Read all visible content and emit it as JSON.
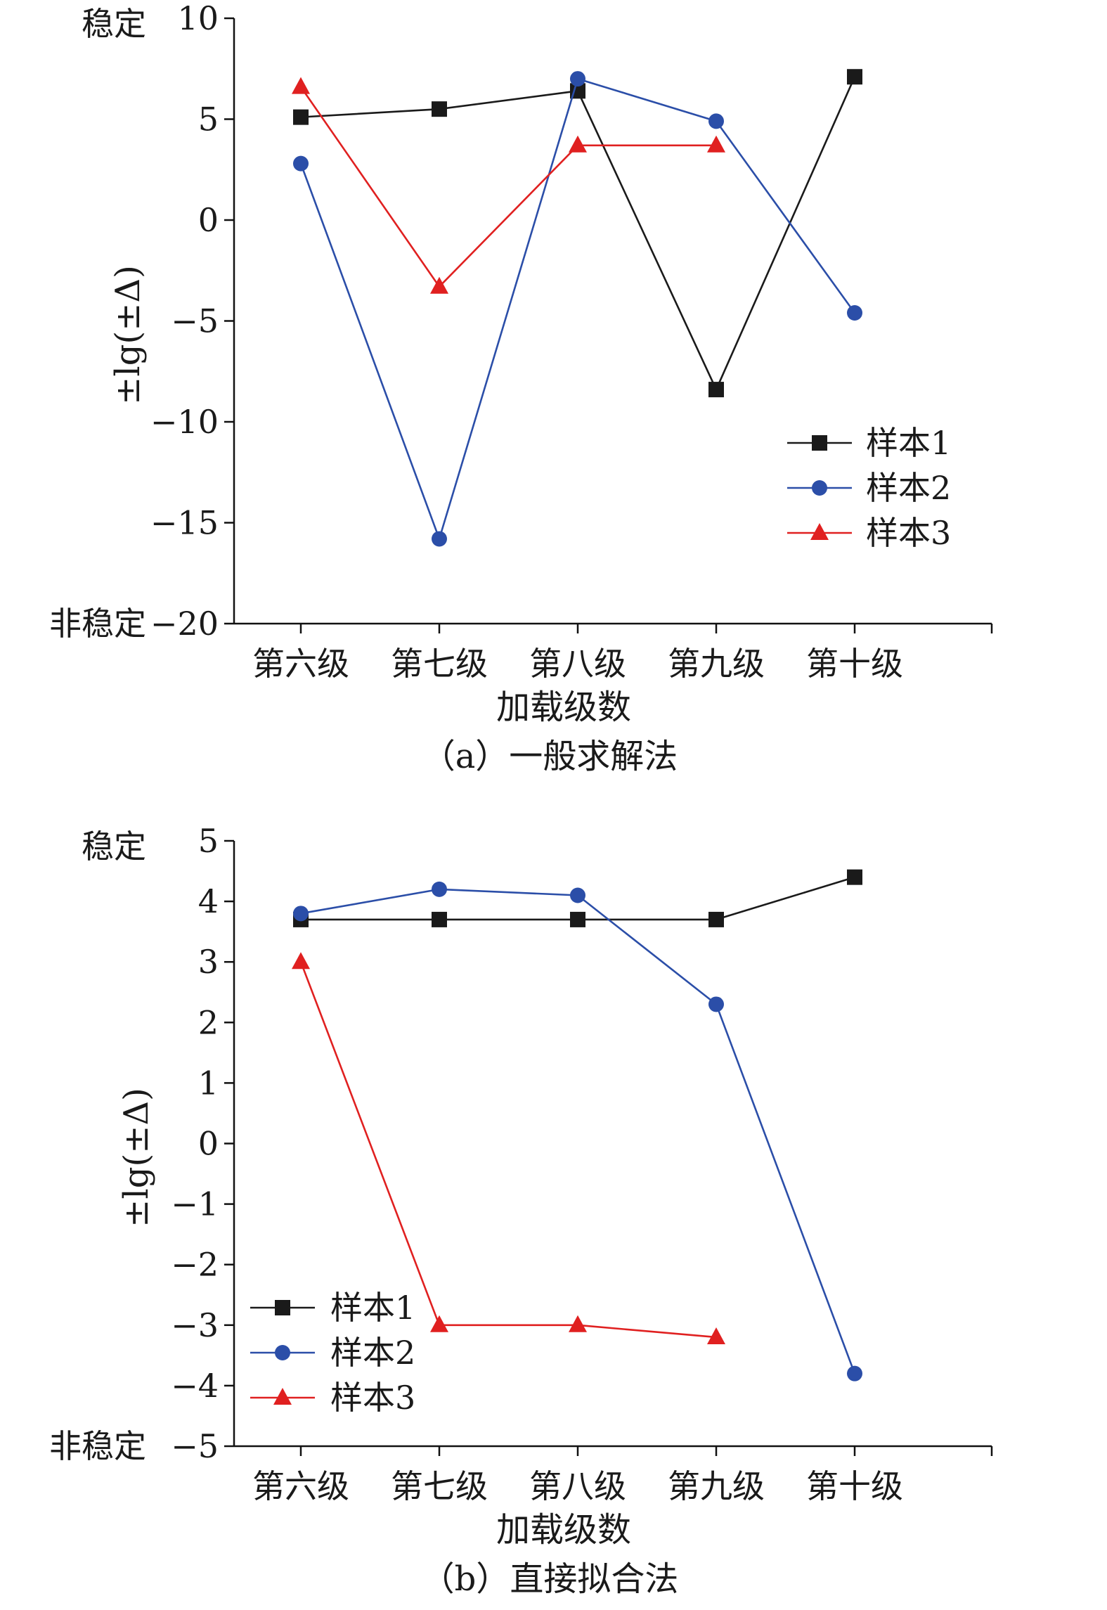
{
  "chart_data": [
    {
      "type": "line",
      "caption": "（a）一般求解法",
      "xlabel": "加载级数",
      "ylabel": "±lg(±Δ)",
      "categories": [
        "第六级",
        "第七级",
        "第八级",
        "第九级",
        "第十级"
      ],
      "ylim": [
        -20,
        10
      ],
      "yticks": [
        10,
        5,
        0,
        -5,
        -10,
        -15,
        -20
      ],
      "ytick_labels": [
        "10",
        "5",
        "0",
        "−5",
        "−10",
        "−15",
        "−20"
      ],
      "stability_labels": {
        "top": "稳定",
        "bottom": "非稳定"
      },
      "legend_position": "right",
      "series": [
        {
          "name": "样本1",
          "color": "#1a1a1a",
          "marker": "square",
          "values": [
            5.1,
            5.5,
            6.4,
            -8.4,
            7.1
          ]
        },
        {
          "name": "样本2",
          "color": "#2b4ea8",
          "marker": "circle",
          "values": [
            2.8,
            -15.8,
            7.0,
            4.9,
            -4.6
          ]
        },
        {
          "name": "样本3",
          "color": "#e02020",
          "marker": "triangle",
          "values": [
            6.6,
            -3.3,
            3.7,
            3.7,
            null
          ]
        }
      ]
    },
    {
      "type": "line",
      "caption": "（b）直接拟合法",
      "xlabel": "加载级数",
      "ylabel": "±lg(±Δ)",
      "categories": [
        "第六级",
        "第七级",
        "第八级",
        "第九级",
        "第十级"
      ],
      "ylim": [
        -5,
        5
      ],
      "yticks": [
        5,
        4,
        3,
        2,
        1,
        0,
        -1,
        -2,
        -3,
        -4,
        -5
      ],
      "ytick_labels": [
        "5",
        "4",
        "3",
        "2",
        "1",
        "0",
        "−1",
        "−2",
        "−3",
        "−4",
        "−5"
      ],
      "stability_labels": {
        "top": "稳定",
        "bottom": "非稳定"
      },
      "legend_position": "left",
      "series": [
        {
          "name": "样本1",
          "color": "#1a1a1a",
          "marker": "square",
          "values": [
            3.7,
            3.7,
            3.7,
            3.7,
            4.4
          ]
        },
        {
          "name": "样本2",
          "color": "#2b4ea8",
          "marker": "circle",
          "values": [
            3.8,
            4.2,
            4.1,
            2.3,
            -3.8
          ]
        },
        {
          "name": "样本3",
          "color": "#e02020",
          "marker": "triangle",
          "values": [
            3.0,
            -3.0,
            -3.0,
            -3.2,
            null
          ]
        }
      ]
    }
  ]
}
